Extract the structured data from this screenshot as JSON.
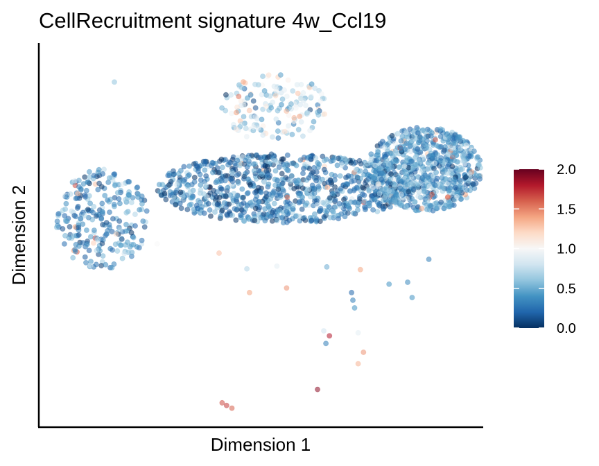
{
  "chart_data": {
    "type": "scatter",
    "title": "CellRecruitment signature 4w_Ccl19",
    "xlabel": "Dimension 1",
    "ylabel": "Dimension 2",
    "xlim": [
      0,
      100
    ],
    "ylim": [
      0,
      100
    ],
    "x_ticks_shown": false,
    "y_ticks_shown": false,
    "grid": false,
    "legend": {
      "type": "colorbar",
      "placement": "right",
      "range": [
        0.0,
        2.0
      ],
      "ticks": [
        "0.0",
        "0.5",
        "1.0",
        "1.5",
        "2.0"
      ],
      "colors": [
        "#053061",
        "#2166ac",
        "#4393c3",
        "#92c5de",
        "#d1e5f0",
        "#f7f7f7",
        "#fddbc7",
        "#f4a582",
        "#d6604d",
        "#b2182b",
        "#67001f"
      ]
    },
    "point_opacity": 0.55,
    "clusters": [
      {
        "name": "left-cluster",
        "shape": "ellipse",
        "cx": 14,
        "cy": 54,
        "rx": 10.5,
        "ry": 13,
        "n": 260,
        "value_mean": 0.35,
        "value_sd": 0.2
      },
      {
        "name": "middle-band",
        "shape": "ellipse",
        "cx": 55,
        "cy": 62,
        "rx": 29,
        "ry": 9,
        "n": 900,
        "value_mean": 0.3,
        "value_sd": 0.22
      },
      {
        "name": "right-cluster",
        "shape": "ellipse",
        "cx": 87,
        "cy": 67,
        "rx": 13,
        "ry": 11,
        "n": 750,
        "value_mean": 0.45,
        "value_sd": 0.22
      },
      {
        "name": "upper-spread",
        "shape": "ellipse",
        "cx": 53,
        "cy": 83,
        "rx": 12,
        "ry": 9,
        "n": 160,
        "value_mean": 0.75,
        "value_sd": 0.3
      }
    ],
    "outliers": [
      {
        "x": 16.8,
        "y": 89.8,
        "value": 0.6
      },
      {
        "x": 40.5,
        "y": 45.1,
        "value": 1.3
      },
      {
        "x": 47.4,
        "y": 34.8,
        "value": 1.4
      },
      {
        "x": 55.8,
        "y": 36.0,
        "value": 1.45
      },
      {
        "x": 53.6,
        "y": 41.7,
        "value": 0.9
      },
      {
        "x": 46.8,
        "y": 41.0,
        "value": 0.7
      },
      {
        "x": 64.9,
        "y": 41.5,
        "value": 0.5
      },
      {
        "x": 72.5,
        "y": 40.8,
        "value": 1.4
      },
      {
        "x": 70.5,
        "y": 34.8,
        "value": 0.2
      },
      {
        "x": 70.8,
        "y": 32.8,
        "value": 0.3
      },
      {
        "x": 71.2,
        "y": 30.8,
        "value": 0.4
      },
      {
        "x": 64.2,
        "y": 24.8,
        "value": 0.8
      },
      {
        "x": 65.5,
        "y": 23.5,
        "value": 1.8
      },
      {
        "x": 64.7,
        "y": 21.5,
        "value": 0.3
      },
      {
        "x": 72.0,
        "y": 24.3,
        "value": 0.9
      },
      {
        "x": 73.2,
        "y": 19.2,
        "value": 1.45
      },
      {
        "x": 72.0,
        "y": 16.2,
        "value": 1.35
      },
      {
        "x": 62.8,
        "y": 9.5,
        "value": 1.9
      },
      {
        "x": 41.2,
        "y": 6.0,
        "value": 1.65
      },
      {
        "x": 42.2,
        "y": 5.3,
        "value": 1.7
      },
      {
        "x": 43.4,
        "y": 4.6,
        "value": 1.6
      },
      {
        "x": 79.0,
        "y": 37.0,
        "value": 0.4
      },
      {
        "x": 83.2,
        "y": 37.5,
        "value": 0.35
      },
      {
        "x": 84.2,
        "y": 33.5,
        "value": 0.4
      },
      {
        "x": 88.0,
        "y": 43.5,
        "value": 0.3
      },
      {
        "x": 26.5,
        "y": 47.5,
        "value": 1.0
      }
    ]
  }
}
